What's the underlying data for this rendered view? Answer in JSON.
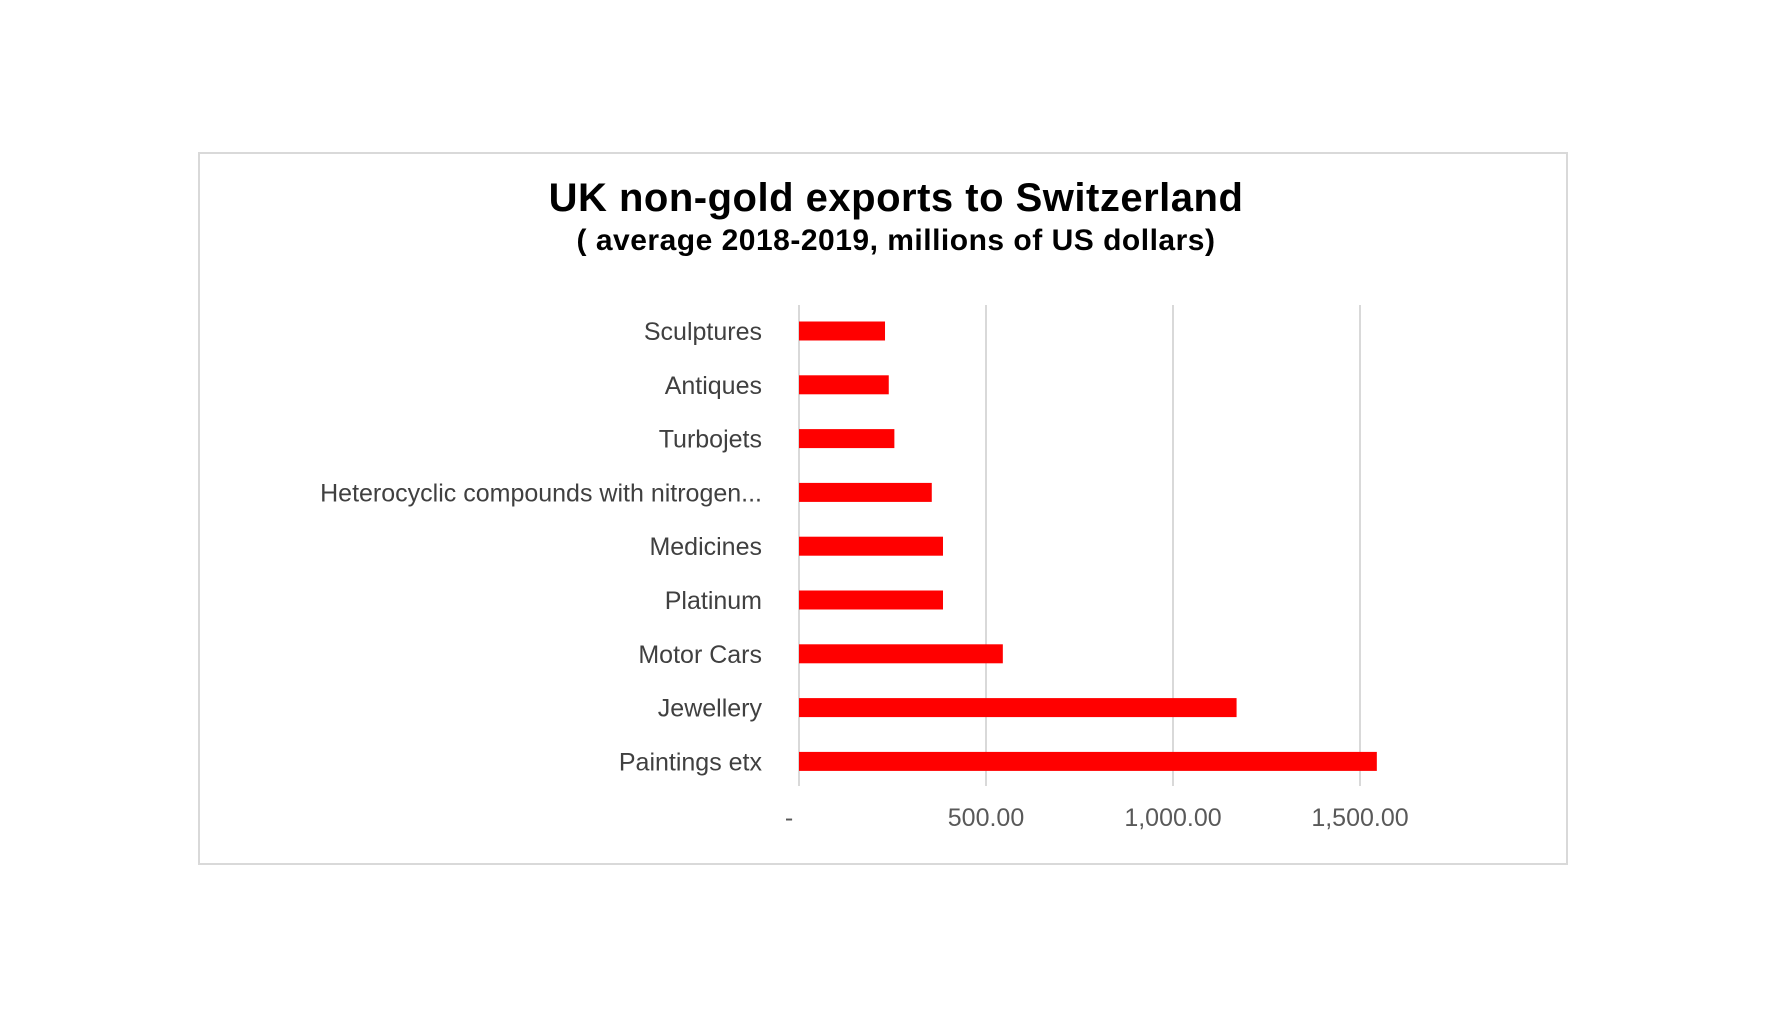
{
  "chart_data": {
    "type": "bar",
    "orientation": "horizontal",
    "title": "UK non-gold exports to Switzerland",
    "subtitle": "( average 2018-2019,  millions of US dollars)",
    "categories": [
      "Sculptures",
      "Antiques",
      "Turbojets",
      "Heterocyclic compounds with nitrogen...",
      "Medicines",
      "Platinum",
      "Motor Cars",
      "Jewellery",
      "Paintings etx"
    ],
    "values": [
      230,
      240,
      255,
      355,
      385,
      385,
      545,
      1170,
      1545
    ],
    "xlim": [
      0,
      1750
    ],
    "x_ticks": [
      0,
      500,
      1000,
      1500
    ],
    "x_tick_labels": [
      "-",
      "500.00",
      "1,000.00",
      "1,500.00"
    ],
    "grid": "vertical",
    "bar_color": "#ff0000",
    "grid_color": "#d9d9d9"
  }
}
